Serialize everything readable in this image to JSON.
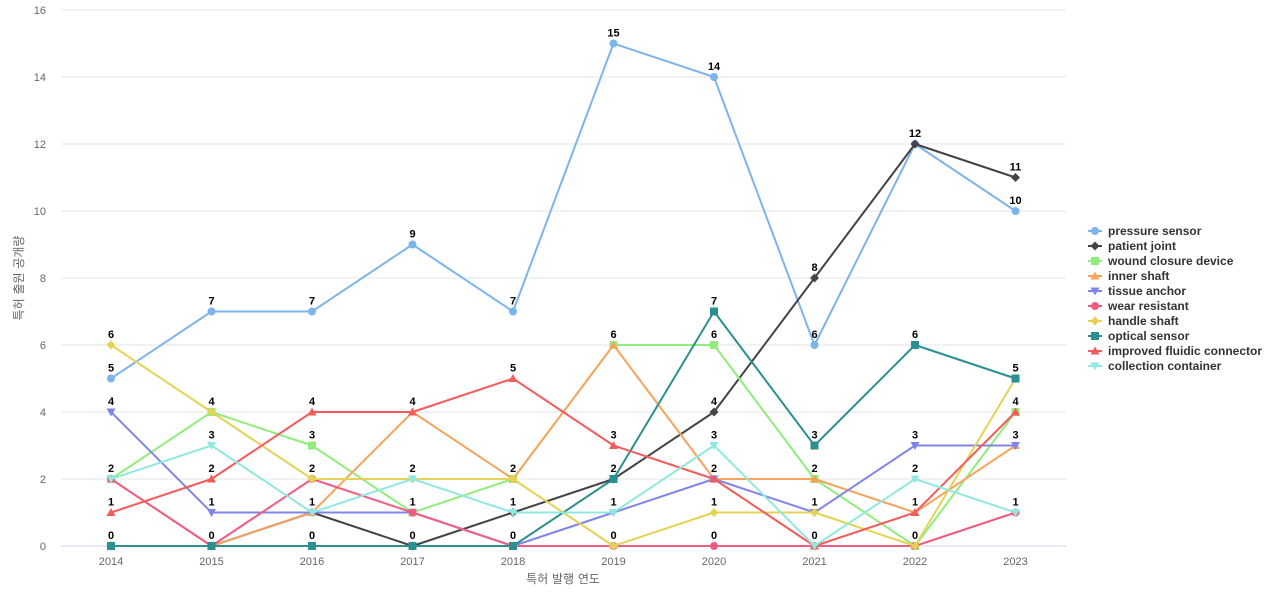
{
  "chart_data": {
    "type": "line",
    "title": "",
    "xlabel": "특허 발행 연도",
    "ylabel": "특허 출원 공개량",
    "x": [
      "2014",
      "2015",
      "2016",
      "2017",
      "2018",
      "2019",
      "2020",
      "2021",
      "2022",
      "2023"
    ],
    "ylim": [
      0,
      16
    ],
    "yticks": [
      0,
      2,
      4,
      6,
      8,
      10,
      12,
      14,
      16
    ],
    "grid": true,
    "legend_position": "right",
    "series": [
      {
        "name": "pressure sensor",
        "color": "#7cb5ec",
        "marker": "circle",
        "values": [
          5,
          7,
          7,
          9,
          7,
          15,
          14,
          6,
          12,
          10
        ]
      },
      {
        "name": "patient joint",
        "color": "#434348",
        "marker": "diamond",
        "values": [
          0,
          0,
          1,
          0,
          1,
          2,
          4,
          8,
          12,
          11
        ]
      },
      {
        "name": "wound closure device",
        "color": "#90ed7d",
        "marker": "square",
        "values": [
          2,
          4,
          3,
          1,
          2,
          6,
          6,
          2,
          0,
          4
        ]
      },
      {
        "name": "inner shaft",
        "color": "#f7a35c",
        "marker": "triangle",
        "values": [
          2,
          0,
          1,
          4,
          2,
          6,
          2,
          2,
          1,
          3
        ]
      },
      {
        "name": "tissue anchor",
        "color": "#8085e9",
        "marker": "triangle-down",
        "values": [
          4,
          1,
          1,
          1,
          0,
          1,
          2,
          1,
          3,
          3
        ]
      },
      {
        "name": "wear resistant",
        "color": "#f15c80",
        "marker": "circle",
        "values": [
          2,
          0,
          2,
          1,
          0,
          0,
          0,
          0,
          0,
          1
        ]
      },
      {
        "name": "handle shaft",
        "color": "#e4d354",
        "marker": "diamond",
        "values": [
          6,
          4,
          2,
          2,
          2,
          0,
          1,
          1,
          0,
          5
        ]
      },
      {
        "name": "optical sensor",
        "color": "#2b908f",
        "marker": "square",
        "values": [
          0,
          0,
          0,
          0,
          0,
          2,
          7,
          3,
          6,
          5
        ]
      },
      {
        "name": "improved fluidic connector",
        "color": "#f45b5b",
        "marker": "triangle",
        "values": [
          1,
          2,
          4,
          4,
          5,
          3,
          2,
          0,
          1,
          4
        ]
      },
      {
        "name": "collection container",
        "color": "#91e8e1",
        "marker": "triangle-down",
        "values": [
          2,
          3,
          1,
          2,
          1,
          1,
          3,
          0,
          2,
          1
        ]
      }
    ],
    "data_labels": [
      {
        "x": "2014",
        "y": 6,
        "text": "6"
      },
      {
        "x": "2014",
        "y": 5,
        "text": "5"
      },
      {
        "x": "2014",
        "y": 4,
        "text": "4"
      },
      {
        "x": "2014",
        "y": 2,
        "text": "2"
      },
      {
        "x": "2014",
        "y": 1,
        "text": "1"
      },
      {
        "x": "2014",
        "y": 0,
        "text": "0"
      },
      {
        "x": "2015",
        "y": 7,
        "text": "7"
      },
      {
        "x": "2015",
        "y": 4,
        "text": "4"
      },
      {
        "x": "2015",
        "y": 3,
        "text": "3"
      },
      {
        "x": "2015",
        "y": 2,
        "text": "2"
      },
      {
        "x": "2015",
        "y": 1,
        "text": "1"
      },
      {
        "x": "2015",
        "y": 0,
        "text": "0"
      },
      {
        "x": "2016",
        "y": 7,
        "text": "7"
      },
      {
        "x": "2016",
        "y": 4,
        "text": "4"
      },
      {
        "x": "2016",
        "y": 3,
        "text": "3"
      },
      {
        "x": "2016",
        "y": 2,
        "text": "2"
      },
      {
        "x": "2016",
        "y": 1,
        "text": "1"
      },
      {
        "x": "2016",
        "y": 0,
        "text": "0"
      },
      {
        "x": "2017",
        "y": 9,
        "text": "9"
      },
      {
        "x": "2017",
        "y": 4,
        "text": "4"
      },
      {
        "x": "2017",
        "y": 2,
        "text": "2"
      },
      {
        "x": "2017",
        "y": 1,
        "text": "1"
      },
      {
        "x": "2017",
        "y": 0,
        "text": "0"
      },
      {
        "x": "2018",
        "y": 7,
        "text": "7"
      },
      {
        "x": "2018",
        "y": 5,
        "text": "5"
      },
      {
        "x": "2018",
        "y": 2,
        "text": "2"
      },
      {
        "x": "2018",
        "y": 1,
        "text": "1"
      },
      {
        "x": "2018",
        "y": 0,
        "text": "0"
      },
      {
        "x": "2019",
        "y": 15,
        "text": "15"
      },
      {
        "x": "2019",
        "y": 6,
        "text": "6"
      },
      {
        "x": "2019",
        "y": 3,
        "text": "3"
      },
      {
        "x": "2019",
        "y": 2,
        "text": "2"
      },
      {
        "x": "2019",
        "y": 1,
        "text": "1"
      },
      {
        "x": "2019",
        "y": 0,
        "text": "0"
      },
      {
        "x": "2020",
        "y": 14,
        "text": "14"
      },
      {
        "x": "2020",
        "y": 7,
        "text": "7"
      },
      {
        "x": "2020",
        "y": 6,
        "text": "6"
      },
      {
        "x": "2020",
        "y": 4,
        "text": "4"
      },
      {
        "x": "2020",
        "y": 3,
        "text": "3"
      },
      {
        "x": "2020",
        "y": 2,
        "text": "2"
      },
      {
        "x": "2020",
        "y": 1,
        "text": "1"
      },
      {
        "x": "2020",
        "y": 0,
        "text": "0"
      },
      {
        "x": "2021",
        "y": 8,
        "text": "8"
      },
      {
        "x": "2021",
        "y": 6,
        "text": "6"
      },
      {
        "x": "2021",
        "y": 3,
        "text": "3"
      },
      {
        "x": "2021",
        "y": 2,
        "text": "2"
      },
      {
        "x": "2021",
        "y": 1,
        "text": "1"
      },
      {
        "x": "2021",
        "y": 0,
        "text": "0"
      },
      {
        "x": "2022",
        "y": 12,
        "text": "12"
      },
      {
        "x": "2022",
        "y": 6,
        "text": "6"
      },
      {
        "x": "2022",
        "y": 3,
        "text": "3"
      },
      {
        "x": "2022",
        "y": 2,
        "text": "2"
      },
      {
        "x": "2022",
        "y": 1,
        "text": "1"
      },
      {
        "x": "2022",
        "y": 0,
        "text": "0"
      },
      {
        "x": "2023",
        "y": 11,
        "text": "11"
      },
      {
        "x": "2023",
        "y": 10,
        "text": "10"
      },
      {
        "x": "2023",
        "y": 5,
        "text": "5"
      },
      {
        "x": "2023",
        "y": 4,
        "text": "4"
      },
      {
        "x": "2023",
        "y": 3,
        "text": "3"
      },
      {
        "x": "2023",
        "y": 1,
        "text": "1"
      }
    ]
  }
}
